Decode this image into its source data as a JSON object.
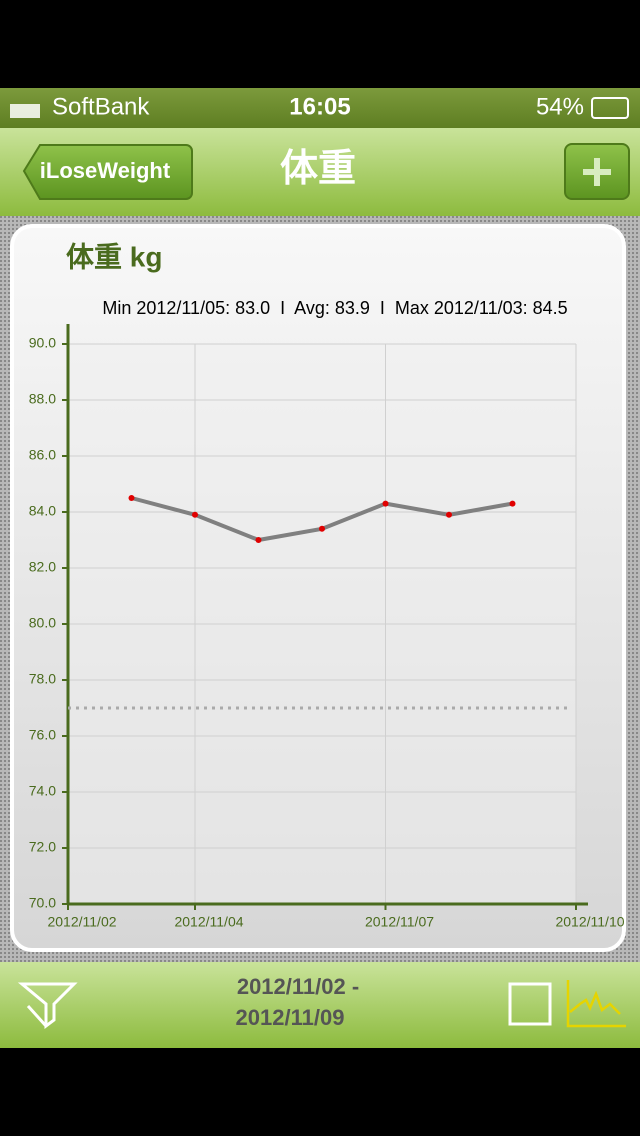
{
  "status_bar": {
    "carrier": "SoftBank",
    "time": "16:05",
    "battery": "54%"
  },
  "nav_bar": {
    "back_button": "iLoseWeight",
    "title": "体重"
  },
  "chart_data": {
    "type": "line",
    "title": "体重 kg",
    "summary": "Min 2012/11/05: 83.0  I  Avg: 83.9  I  Max 2012/11/03: 84.5",
    "x": [
      "2012/11/03",
      "2012/11/04",
      "2012/11/05",
      "2012/11/06",
      "2012/11/07",
      "2012/11/08",
      "2012/11/09"
    ],
    "series": [
      {
        "name": "体重",
        "color": "#808080",
        "point_color": "#e00000",
        "values": [
          84.5,
          83.9,
          83.0,
          83.4,
          84.3,
          83.9,
          84.3
        ]
      }
    ],
    "xlim": [
      "2012/11/02",
      "2012/11/10"
    ],
    "xticks": [
      "2012/11/02",
      "2012/11/04",
      "2012/11/07",
      "2012/11/10"
    ],
    "ylim": [
      70,
      90
    ],
    "yticks": [
      {
        "value": 70,
        "label": "70.0"
      },
      {
        "value": 72,
        "label": "72.0"
      },
      {
        "value": 74,
        "label": "74.0"
      },
      {
        "value": 76,
        "label": "76.0"
      },
      {
        "value": 78,
        "label": "78.0"
      },
      {
        "value": 80,
        "label": "80.0"
      },
      {
        "value": 82,
        "label": "82.0"
      },
      {
        "value": 84,
        "label": "84.0"
      },
      {
        "value": 86,
        "label": "86.0"
      },
      {
        "value": 88,
        "label": "88.0"
      },
      {
        "value": 90,
        "label": "90.0"
      }
    ],
    "reference_line": 77.0,
    "grid": true
  },
  "toolbar": {
    "range_start": "2012/11/02 -",
    "range_end": "2012/11/09"
  }
}
